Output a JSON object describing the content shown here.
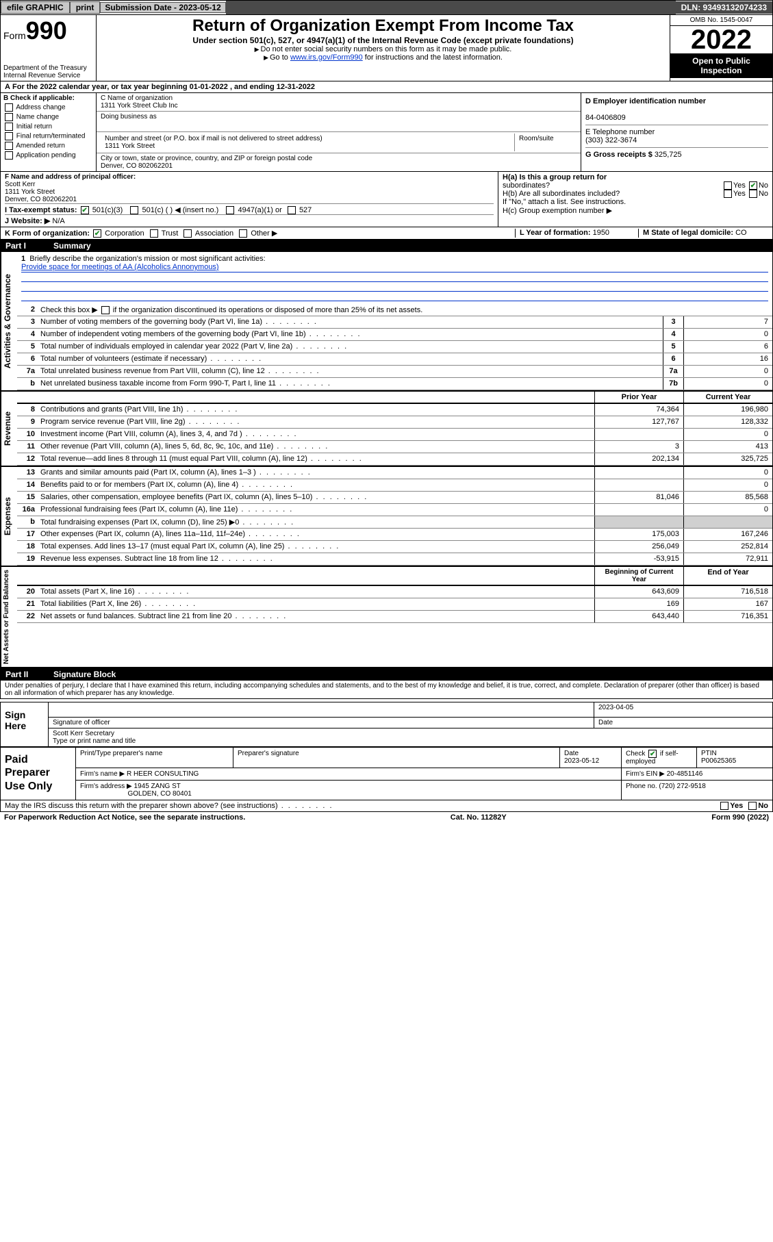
{
  "topbar": {
    "efile": "efile GRAPHIC",
    "print": "print",
    "sub_label": "Submission Date - 2023-05-12",
    "dln": "DLN: 93493132074233"
  },
  "header": {
    "form_prefix": "Form",
    "form_num": "990",
    "dept": "Department of the Treasury",
    "irs": "Internal Revenue Service",
    "title": "Return of Organization Exempt From Income Tax",
    "subtitle": "Under section 501(c), 527, or 4947(a)(1) of the Internal Revenue Code (except private foundations)",
    "instr1": "Do not enter social security numbers on this form as it may be made public.",
    "instr2_pre": "Go to ",
    "instr2_link": "www.irs.gov/Form990",
    "instr2_post": " for instructions and the latest information.",
    "omb": "OMB No. 1545-0047",
    "year": "2022",
    "open1": "Open to Public",
    "open2": "Inspection"
  },
  "section_a": "For the 2022 calendar year, or tax year beginning 01-01-2022    , and ending 12-31-2022",
  "box_b": {
    "title": "B Check if applicable:",
    "items": [
      "Address change",
      "Name change",
      "Initial return",
      "Final return/terminated",
      "Amended return",
      "Application pending"
    ]
  },
  "box_c": {
    "label_name": "C Name of organization",
    "name": "1311 York Street Club Inc",
    "dba_label": "Doing business as",
    "addr_label": "Number and street (or P.O. box if mail is not delivered to street address)",
    "room_label": "Room/suite",
    "addr": "1311 York Street",
    "city_label": "City or town, state or province, country, and ZIP or foreign postal code",
    "city": "Denver, CO  802062201"
  },
  "box_d": {
    "label": "D Employer identification number",
    "ein": "84-0406809"
  },
  "box_e": {
    "label": "E Telephone number",
    "phone": "(303) 322-3674"
  },
  "box_g": {
    "label": "G Gross receipts $",
    "amount": "325,725"
  },
  "box_f": {
    "label": "F Name and address of principal officer:",
    "name": "Scott Kerr",
    "addr1": "1311 York Street",
    "addr2": "Denver, CO  802062201"
  },
  "box_h": {
    "a_label": "H(a)  Is this a group return for",
    "a_sub": "subordinates?",
    "b_label": "H(b)  Are all subordinates included?",
    "b_note": "If \"No,\" attach a list. See instructions.",
    "c_label": "H(c)  Group exemption number ▶",
    "yes": "Yes",
    "no": "No"
  },
  "box_i": {
    "label": "I    Tax-exempt status:",
    "c3": "501(c)(3)",
    "c_blank": "501(c) (   ) ◀ (insert no.)",
    "a1": "4947(a)(1) or",
    "s527": "527"
  },
  "box_j": {
    "label": "J   Website: ▶",
    "val": "N/A"
  },
  "box_k": {
    "label": "K Form of organization:",
    "corp": "Corporation",
    "trust": "Trust",
    "assoc": "Association",
    "other": "Other ▶"
  },
  "box_l": {
    "label": "L Year of formation:",
    "val": "1950"
  },
  "box_m": {
    "label": "M State of legal domicile:",
    "val": "CO"
  },
  "part1": {
    "header": "Part I",
    "title": "Summary",
    "l1_label": "Briefly describe the organization's mission or most significant activities:",
    "l1_text": "Provide space for meetings of AA (Alcoholics Annonymous)",
    "l2_label": "Check this box ▶",
    "l2_text": " if the organization discontinued its operations or disposed of more than 25% of its net assets.",
    "rows_gov": [
      {
        "n": "3",
        "t": "Number of voting members of the governing body (Part VI, line 1a)",
        "box": "3",
        "v": "7"
      },
      {
        "n": "4",
        "t": "Number of independent voting members of the governing body (Part VI, line 1b)",
        "box": "4",
        "v": "0"
      },
      {
        "n": "5",
        "t": "Total number of individuals employed in calendar year 2022 (Part V, line 2a)",
        "box": "5",
        "v": "6"
      },
      {
        "n": "6",
        "t": "Total number of volunteers (estimate if necessary)",
        "box": "6",
        "v": "16"
      },
      {
        "n": "7a",
        "t": "Total unrelated business revenue from Part VIII, column (C), line 12",
        "box": "7a",
        "v": "0"
      },
      {
        "n": "b",
        "t": "Net unrelated business taxable income from Form 990-T, Part I, line 11",
        "box": "7b",
        "v": "0"
      }
    ],
    "col_prior": "Prior Year",
    "col_curr": "Current Year",
    "rows_rev": [
      {
        "n": "8",
        "t": "Contributions and grants (Part VIII, line 1h)",
        "p": "74,364",
        "c": "196,980"
      },
      {
        "n": "9",
        "t": "Program service revenue (Part VIII, line 2g)",
        "p": "127,767",
        "c": "128,332"
      },
      {
        "n": "10",
        "t": "Investment income (Part VIII, column (A), lines 3, 4, and 7d )",
        "p": "",
        "c": "0"
      },
      {
        "n": "11",
        "t": "Other revenue (Part VIII, column (A), lines 5, 6d, 8c, 9c, 10c, and 11e)",
        "p": "3",
        "c": "413"
      },
      {
        "n": "12",
        "t": "Total revenue—add lines 8 through 11 (must equal Part VIII, column (A), line 12)",
        "p": "202,134",
        "c": "325,725"
      }
    ],
    "rows_exp": [
      {
        "n": "13",
        "t": "Grants and similar amounts paid (Part IX, column (A), lines 1–3 )",
        "p": "",
        "c": "0"
      },
      {
        "n": "14",
        "t": "Benefits paid to or for members (Part IX, column (A), line 4)",
        "p": "",
        "c": "0"
      },
      {
        "n": "15",
        "t": "Salaries, other compensation, employee benefits (Part IX, column (A), lines 5–10)",
        "p": "81,046",
        "c": "85,568"
      },
      {
        "n": "16a",
        "t": "Professional fundraising fees (Part IX, column (A), line 11e)",
        "p": "",
        "c": "0"
      },
      {
        "n": "b",
        "t": "Total fundraising expenses (Part IX, column (D), line 25) ▶0",
        "p": "",
        "c": "",
        "shade": true
      },
      {
        "n": "17",
        "t": "Other expenses (Part IX, column (A), lines 11a–11d, 11f–24e)",
        "p": "175,003",
        "c": "167,246"
      },
      {
        "n": "18",
        "t": "Total expenses. Add lines 13–17 (must equal Part IX, column (A), line 25)",
        "p": "256,049",
        "c": "252,814"
      },
      {
        "n": "19",
        "t": "Revenue less expenses. Subtract line 18 from line 12",
        "p": "-53,915",
        "c": "72,911"
      }
    ],
    "col_begin": "Beginning of Current Year",
    "col_end": "End of Year",
    "rows_net": [
      {
        "n": "20",
        "t": "Total assets (Part X, line 16)",
        "p": "643,609",
        "c": "716,518"
      },
      {
        "n": "21",
        "t": "Total liabilities (Part X, line 26)",
        "p": "169",
        "c": "167"
      },
      {
        "n": "22",
        "t": "Net assets or fund balances. Subtract line 21 from line 20",
        "p": "643,440",
        "c": "716,351"
      }
    ],
    "side_gov": "Activities & Governance",
    "side_rev": "Revenue",
    "side_exp": "Expenses",
    "side_net": "Net Assets or Fund Balances"
  },
  "part2": {
    "header": "Part II",
    "title": "Signature Block",
    "penalty": "Under penalties of perjury, I declare that I have examined this return, including accompanying schedules and statements, and to the best of my knowledge and belief, it is true, correct, and complete. Declaration of preparer (other than officer) is based on all information of which preparer has any knowledge.",
    "sign_here": "Sign Here",
    "sig_officer": "Signature of officer",
    "date_label": "Date",
    "sig_date": "2023-04-05",
    "name_title": "Scott Kerr  Secretary",
    "type_label": "Type or print name and title",
    "paid": "Paid Preparer Use Only",
    "prep_name_label": "Print/Type preparer's name",
    "prep_sig_label": "Preparer's signature",
    "prep_date_label": "Date",
    "prep_date": "2023-05-12",
    "check_if": "Check",
    "self_emp": "if self-employed",
    "ptin_label": "PTIN",
    "ptin": "P00625365",
    "firm_name_label": "Firm's name    ▶",
    "firm_name": "R HEER CONSULTING",
    "firm_ein_label": "Firm's EIN ▶",
    "firm_ein": "20-4851146",
    "firm_addr_label": "Firm's address ▶",
    "firm_addr1": "1945 ZANG ST",
    "firm_addr2": "GOLDEN, CO  80401",
    "phone_label": "Phone no.",
    "firm_phone": "(720) 272-9518",
    "discuss": "May the IRS discuss this return with the preparer shown above? (see instructions)",
    "yes": "Yes",
    "no": "No"
  },
  "footer": {
    "left": "For Paperwork Reduction Act Notice, see the separate instructions.",
    "mid": "Cat. No. 11282Y",
    "right": "Form 990 (2022)"
  }
}
